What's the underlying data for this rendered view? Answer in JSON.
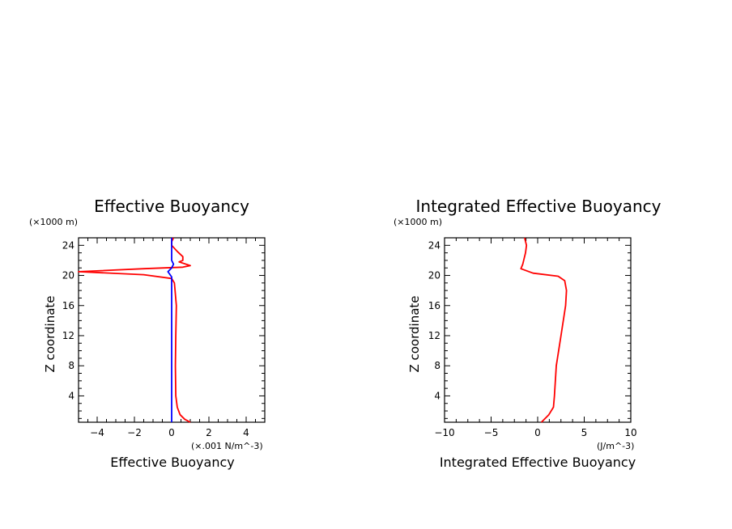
{
  "chart_data": [
    {
      "type": "line",
      "title": "Effective Buoyancy",
      "xlabel": "Effective Buoyancy",
      "ylabel": "Z coordinate",
      "x_unit": "(×.001 N/m^-3)",
      "y_unit": "(×1000 m)",
      "xlim": [
        -5,
        5
      ],
      "ylim": [
        0.5,
        25
      ],
      "x_ticks": [
        -4,
        -2,
        0,
        2,
        4
      ],
      "x_tick_labels": [
        "−4",
        "−2",
        "0",
        "2",
        "4"
      ],
      "y_ticks": [
        4,
        8,
        12,
        16,
        20,
        24
      ],
      "y_tick_labels": [
        "4",
        "8",
        "12",
        "16",
        "20",
        "24"
      ],
      "grid": false,
      "series": [
        {
          "color": "#ff0000",
          "points": [
            [
              1.0,
              0.5
            ],
            [
              0.7,
              0.9
            ],
            [
              0.45,
              1.5
            ],
            [
              0.3,
              2.5
            ],
            [
              0.22,
              4
            ],
            [
              0.2,
              8
            ],
            [
              0.22,
              12
            ],
            [
              0.25,
              16
            ],
            [
              0.15,
              19
            ],
            [
              0,
              19.6
            ],
            [
              -1.5,
              20.1
            ],
            [
              -5,
              20.5
            ],
            [
              -1.5,
              20.9
            ],
            [
              0.6,
              21.1
            ],
            [
              1.0,
              21.3
            ],
            [
              0.4,
              21.8
            ],
            [
              0.6,
              22
            ],
            [
              0.6,
              22.5
            ],
            [
              0.3,
              23.2
            ],
            [
              0,
              24
            ],
            [
              0,
              24.5
            ],
            [
              0.1,
              25
            ]
          ]
        },
        {
          "color": "#0000ff",
          "points": [
            [
              0,
              0.5
            ],
            [
              0,
              19.8
            ],
            [
              -0.2,
              20.5
            ],
            [
              0,
              21
            ],
            [
              0.1,
              21.5
            ],
            [
              0,
              22
            ],
            [
              0,
              25
            ]
          ]
        }
      ]
    },
    {
      "type": "line",
      "title": "Integrated Effective Buoyancy",
      "xlabel": "Integrated Effective Buoyancy",
      "ylabel": "Z coordinate",
      "x_unit": "(J/m^-3)",
      "y_unit": "(×1000 m)",
      "xlim": [
        -10,
        10
      ],
      "ylim": [
        0.5,
        25
      ],
      "x_ticks": [
        -10,
        -5,
        0,
        5,
        10
      ],
      "x_tick_labels": [
        "−10",
        "−5",
        "0",
        "5",
        "10"
      ],
      "y_ticks": [
        4,
        8,
        12,
        16,
        20,
        24
      ],
      "y_tick_labels": [
        "4",
        "8",
        "12",
        "16",
        "20",
        "24"
      ],
      "grid": false,
      "series": [
        {
          "color": "#ff0000",
          "points": [
            [
              0.4,
              0.5
            ],
            [
              1.2,
              1.5
            ],
            [
              1.7,
              2.5
            ],
            [
              1.8,
              4
            ],
            [
              2.0,
              8
            ],
            [
              2.5,
              12
            ],
            [
              3.0,
              16
            ],
            [
              3.1,
              18
            ],
            [
              2.9,
              19.3
            ],
            [
              2.2,
              19.9
            ],
            [
              -0.5,
              20.3
            ],
            [
              -1.8,
              20.9
            ],
            [
              -1.6,
              21.5
            ],
            [
              -1.3,
              23
            ],
            [
              -1.2,
              24
            ],
            [
              -1.4,
              25
            ]
          ]
        }
      ]
    }
  ]
}
